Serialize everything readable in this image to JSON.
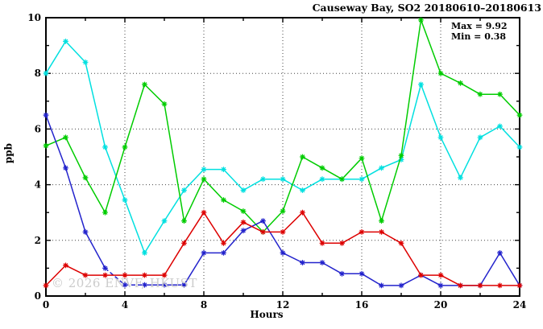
{
  "window": {
    "background": "#ffffff"
  },
  "chart_data": {
    "type": "line",
    "title": "Causeway Bay, SO2 20180610–20180613",
    "xlabel": "Hours",
    "ylabel": "ppb",
    "xlim": [
      0,
      24
    ],
    "ylim": [
      0,
      10
    ],
    "x_major_ticks": [
      0,
      4,
      8,
      12,
      16,
      20,
      24
    ],
    "x_minor_ticks": [
      2,
      6,
      10,
      14,
      18,
      22
    ],
    "y_major_ticks": [
      0,
      2,
      4,
      6,
      8,
      10
    ],
    "y_minor_ticks": [
      1,
      3,
      5,
      7,
      9
    ],
    "grid": {
      "x_lines": [
        4,
        8,
        12,
        16,
        20
      ],
      "y_lines": [
        2,
        4,
        6,
        8
      ],
      "style": "dotted"
    },
    "legend": "none",
    "marker": "asterisk",
    "x": [
      0,
      1,
      2,
      3,
      4,
      5,
      6,
      7,
      8,
      9,
      10,
      11,
      12,
      13,
      14,
      15,
      16,
      17,
      18,
      19,
      20,
      21,
      22,
      23,
      24
    ],
    "series": [
      {
        "name": "cyan-line",
        "color": "#00e0e0",
        "values": [
          8.0,
          9.15,
          8.4,
          5.35,
          3.45,
          1.55,
          2.7,
          3.8,
          4.55,
          4.55,
          3.8,
          4.2,
          4.2,
          3.8,
          4.2,
          4.2,
          4.2,
          4.6,
          4.9,
          7.6,
          5.7,
          4.25,
          5.7,
          6.1,
          5.35
        ]
      },
      {
        "name": "green-line",
        "color": "#00cc00",
        "values": [
          5.4,
          5.7,
          4.25,
          3.0,
          5.35,
          7.6,
          6.9,
          2.7,
          4.2,
          3.45,
          3.05,
          2.3,
          3.05,
          5.0,
          4.6,
          4.2,
          4.95,
          2.7,
          5.05,
          9.92,
          8.0,
          7.65,
          7.25,
          7.25,
          6.5
        ]
      },
      {
        "name": "blue-line",
        "color": "#2323cc",
        "dashed_segments": [
          [
            3,
            5
          ]
        ],
        "values": [
          6.5,
          4.6,
          2.3,
          1.0,
          0.4,
          0.4,
          0.4,
          0.4,
          1.55,
          1.55,
          2.35,
          2.7,
          1.55,
          1.2,
          1.2,
          0.8,
          0.8,
          0.38,
          0.38,
          0.75,
          0.38,
          0.38,
          0.38,
          1.55,
          0.38
        ]
      },
      {
        "name": "red-line",
        "color": "#dd0000",
        "values": [
          0.38,
          1.1,
          0.75,
          0.75,
          0.75,
          0.75,
          0.75,
          1.9,
          3.0,
          1.9,
          2.65,
          2.3,
          2.3,
          3.0,
          1.9,
          1.9,
          2.3,
          2.3,
          1.9,
          0.75,
          0.75,
          0.38,
          0.38,
          0.38,
          0.38
        ]
      }
    ],
    "annotations": {
      "max_label": "Max = 9.92",
      "min_label": "Min = 0.38"
    }
  },
  "watermark": {
    "text": "© 2026 ENVF, HKUST",
    "color": "#cccccc"
  }
}
